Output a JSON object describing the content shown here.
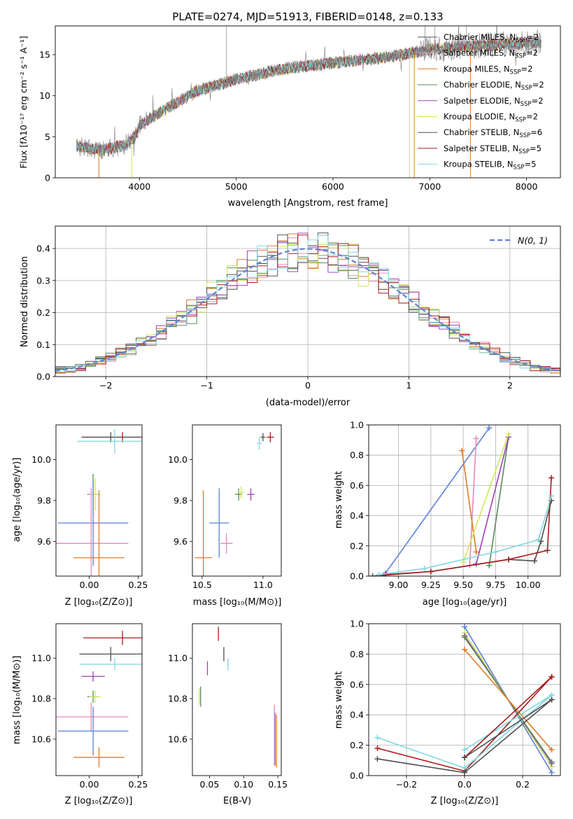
{
  "chart_data": [
    {
      "type": "line",
      "title": "PLATE=0274, MJD=51913, FIBERID=0148, z=0.133",
      "xlabel": "wavelength [Angstrom, rest frame]",
      "ylabel": "Flux [fλ10⁻¹⁷ erg cm⁻² s⁻¹ A⁻¹]",
      "xlim": [
        3130,
        8350
      ],
      "ylim": [
        0,
        18.5
      ],
      "xticks": [
        4000,
        5000,
        6000,
        7000,
        8000
      ],
      "yticks": [
        0,
        5,
        10,
        15
      ],
      "legend_position": "right",
      "series": [
        {
          "name": "Chabrier MILES, N",
          "sub": "SSP",
          "suffix": "=2",
          "color": "#4f4f4f"
        },
        {
          "name": "Salpeter MILES, N",
          "sub": "SSP",
          "suffix": "=2",
          "color": "#e889b8"
        },
        {
          "name": "Kroupa MILES, N",
          "sub": "SSP",
          "suffix": "=2",
          "color": "#e07b27"
        },
        {
          "name": "Chabrier ELODIE, N",
          "sub": "SSP",
          "suffix": "=2",
          "color": "#5b8a5b"
        },
        {
          "name": "Salpeter ELODIE, N",
          "sub": "SSP",
          "suffix": "=2",
          "color": "#a040b8"
        },
        {
          "name": "Kroupa ELODIE, N",
          "sub": "SSP",
          "suffix": "=2",
          "color": "#cfe85a"
        },
        {
          "name": "Chabrier STELIB, N",
          "sub": "SSP",
          "suffix": "=6",
          "color": "#555555"
        },
        {
          "name": "Salpeter STELIB, N",
          "sub": "SSP",
          "suffix": "=5",
          "color": "#a81c1c"
        },
        {
          "name": "Kroupa STELIB, N",
          "sub": "SSP",
          "suffix": "=5",
          "color": "#7fd8e0"
        }
      ],
      "continuum": [
        [
          3350,
          3.8
        ],
        [
          3600,
          3.4
        ],
        [
          3700,
          3.6
        ],
        [
          3850,
          4.0
        ],
        [
          3950,
          5.0
        ],
        [
          4000,
          6.4
        ],
        [
          4300,
          8.6
        ],
        [
          4600,
          10.6
        ],
        [
          5000,
          12.0
        ],
        [
          5500,
          13.3
        ],
        [
          6000,
          14.0
        ],
        [
          6500,
          14.6
        ],
        [
          7000,
          15.6
        ],
        [
          7500,
          16.1
        ],
        [
          8000,
          16.4
        ],
        [
          8150,
          16.5
        ]
      ]
    },
    {
      "type": "line",
      "xlabel": "(data-model)/error",
      "ylabel": "Normed distribution",
      "xlim": [
        -2.5,
        2.5
      ],
      "ylim": [
        0,
        0.47
      ],
      "xticks": [
        -2,
        -1,
        0,
        1,
        2
      ],
      "yticks": [
        0.0,
        0.1,
        0.2,
        0.3,
        0.4
      ],
      "legend": "N(0, 1)",
      "legend_color": "#5b82d6",
      "grid": true
    },
    {
      "type": "scatter",
      "xlabel": "Z [log₁₀(Z/Z⊙)]",
      "ylabel": "age  [log₁₀(age/yr)]",
      "xlim": [
        -0.17,
        0.27
      ],
      "ylim": [
        9.43,
        10.17
      ],
      "xticks": [
        0.0,
        0.25
      ],
      "yticks": [
        9.6,
        9.8,
        10.0
      ],
      "points": [
        {
          "x": 0.17,
          "y": 10.11,
          "xerr": 0.2,
          "yerr": 0.025,
          "color": "#a81c1c"
        },
        {
          "x": 0.11,
          "y": 10.11,
          "xerr": 0.15,
          "yerr": 0.025,
          "color": "#4f4f4f"
        },
        {
          "x": 0.13,
          "y": 10.09,
          "xerr": 0.19,
          "yerr": 0.06,
          "color": "#7fd8e0"
        },
        {
          "x": 0.02,
          "y": 9.83,
          "xerr": 0.03,
          "yerr": 0.1,
          "color": "#5b8a5b"
        },
        {
          "x": 0.03,
          "y": 9.83,
          "xerr": 0.03,
          "yerr": 0.08,
          "color": "#cfe85a"
        },
        {
          "x": 0.02,
          "y": 9.69,
          "xerr": 0.18,
          "yerr": 0.21,
          "color": "#5b82d6"
        },
        {
          "x": 0.01,
          "y": 9.59,
          "xerr": 0.19,
          "yerr": 0.27,
          "color": "#e889b8"
        },
        {
          "x": 0.05,
          "y": 9.52,
          "xerr": 0.13,
          "yerr": 0.33,
          "color": "#e07b27"
        }
      ]
    },
    {
      "type": "scatter",
      "xlabel": "mass [log₁₀(M/M⊙)]",
      "xlim": [
        10.42,
        11.15
      ],
      "ylim": [
        9.43,
        10.17
      ],
      "xticks": [
        10.5,
        11.0
      ],
      "yticks": [
        9.6,
        9.8,
        10.0
      ],
      "points": [
        {
          "x": 11.06,
          "y": 10.11,
          "xerr": 0.03,
          "yerr": 0.025,
          "color": "#a81c1c"
        },
        {
          "x": 11.0,
          "y": 10.11,
          "xerr": 0.02,
          "yerr": 0.02,
          "color": "#4f4f4f"
        },
        {
          "x": 10.97,
          "y": 10.08,
          "xerr": 0.02,
          "yerr": 0.03,
          "color": "#7fd8e0"
        },
        {
          "x": 10.8,
          "y": 9.83,
          "xerr": 0.03,
          "yerr": 0.03,
          "color": "#5b8a5b"
        },
        {
          "x": 10.82,
          "y": 9.84,
          "xerr": 0.03,
          "yerr": 0.03,
          "color": "#cfe85a"
        },
        {
          "x": 10.9,
          "y": 9.83,
          "xerr": 0.03,
          "yerr": 0.03,
          "color": "#a040b8"
        },
        {
          "x": 10.64,
          "y": 9.69,
          "xerr": 0.08,
          "yerr": 0.17,
          "color": "#5b82d6"
        },
        {
          "x": 10.7,
          "y": 9.59,
          "xerr": 0.05,
          "yerr": 0.05,
          "color": "#e889b8"
        },
        {
          "x": 10.51,
          "y": 9.52,
          "xerr": 0.07,
          "yerr": 0.33,
          "color": "#e07b27"
        }
      ]
    },
    {
      "type": "line",
      "xlabel": "age  [log₁₀(age/yr)]",
      "ylabel": "mass weight",
      "xlim": [
        8.77,
        10.25
      ],
      "ylim": [
        0,
        1.0
      ],
      "xticks": [
        9.0,
        9.25,
        9.5,
        9.75,
        10.0
      ],
      "yticks": [
        0.0,
        0.2,
        0.4,
        0.6,
        0.8,
        1.0
      ],
      "grid": true,
      "series": [
        {
          "color": "#5b82d6",
          "x": [
            8.9,
            9.7
          ],
          "y": [
            0.02,
            0.98
          ]
        },
        {
          "color": "#e889b8",
          "x": [
            9.55,
            9.6
          ],
          "y": [
            0.07,
            0.91
          ]
        },
        {
          "color": "#e07b27",
          "x": [
            9.49,
            9.6
          ],
          "y": [
            0.83,
            0.16
          ]
        },
        {
          "color": "#5b8a5b",
          "x": [
            9.7,
            9.85
          ],
          "y": [
            0.07,
            0.92
          ]
        },
        {
          "color": "#a040b8",
          "x": [
            9.6,
            9.85
          ],
          "y": [
            0.08,
            0.92
          ]
        },
        {
          "color": "#cfe85a",
          "x": [
            9.5,
            9.85
          ],
          "y": [
            0.09,
            0.94
          ]
        },
        {
          "color": "#4f4f4f",
          "x": [
            8.8,
            9.25,
            9.85,
            10.05,
            10.1,
            10.18
          ],
          "y": [
            0.0,
            0.03,
            0.11,
            0.1,
            0.23,
            0.5
          ]
        },
        {
          "color": "#a81c1c",
          "x": [
            8.9,
            9.25,
            9.85,
            10.15,
            10.18
          ],
          "y": [
            0.01,
            0.03,
            0.11,
            0.17,
            0.65
          ]
        },
        {
          "color": "#7fd8e0",
          "x": [
            8.85,
            9.2,
            9.75,
            10.08,
            10.18
          ],
          "y": [
            0.01,
            0.05,
            0.16,
            0.24,
            0.53
          ]
        }
      ]
    },
    {
      "type": "scatter",
      "xlabel": "Z [log₁₀(Z/Z⊙)]",
      "ylabel": "mass [log₁₀(M/M⊙)]",
      "xlim": [
        -0.17,
        0.27
      ],
      "ylim": [
        10.42,
        11.17
      ],
      "xticks": [
        0.0,
        0.25
      ],
      "yticks": [
        10.6,
        10.8,
        11.0
      ],
      "points": [
        {
          "x": 0.17,
          "y": 11.1,
          "xerr": 0.2,
          "yerr": 0.035,
          "color": "#a81c1c"
        },
        {
          "x": 0.11,
          "y": 11.02,
          "xerr": 0.16,
          "yerr": 0.035,
          "color": "#4f4f4f"
        },
        {
          "x": 0.13,
          "y": 10.97,
          "xerr": 0.18,
          "yerr": 0.03,
          "color": "#7fd8e0"
        },
        {
          "x": 0.02,
          "y": 10.91,
          "xerr": 0.06,
          "yerr": 0.025,
          "color": "#a040b8"
        },
        {
          "x": 0.02,
          "y": 10.81,
          "xerr": 0.03,
          "yerr": 0.03,
          "color": "#5b8a5b"
        },
        {
          "x": 0.03,
          "y": 10.81,
          "xerr": 0.03,
          "yerr": 0.03,
          "color": "#cfe85a"
        },
        {
          "x": 0.01,
          "y": 10.71,
          "xerr": 0.19,
          "yerr": 0.07,
          "color": "#e889b8"
        },
        {
          "x": 0.02,
          "y": 10.64,
          "xerr": 0.18,
          "yerr": 0.12,
          "color": "#5b82d6"
        },
        {
          "x": 0.05,
          "y": 10.51,
          "xerr": 0.13,
          "yerr": 0.05,
          "color": "#e07b27"
        }
      ]
    },
    {
      "type": "scatter",
      "xlabel": "E(B-V)",
      "xlim": [
        0.025,
        0.155
      ],
      "ylim": [
        10.42,
        11.17
      ],
      "xticks": [
        0.05,
        0.1,
        0.15
      ],
      "yticks": [
        10.6,
        10.8,
        11.0
      ],
      "points": [
        {
          "x": 0.063,
          "y": 11.12,
          "xerr": 0.0,
          "yerr": 0.035,
          "color": "#a81c1c"
        },
        {
          "x": 0.071,
          "y": 11.02,
          "xerr": 0.0,
          "yerr": 0.035,
          "color": "#4f4f4f"
        },
        {
          "x": 0.077,
          "y": 10.97,
          "xerr": 0.0,
          "yerr": 0.03,
          "color": "#7fd8e0"
        },
        {
          "x": 0.047,
          "y": 10.95,
          "xerr": 0.0,
          "yerr": 0.035,
          "color": "#a040b8"
        },
        {
          "x": 0.037,
          "y": 10.81,
          "xerr": 0.0,
          "yerr": 0.05,
          "color": "#5b8a5b"
        },
        {
          "x": 0.035,
          "y": 10.81,
          "xerr": 0.0,
          "yerr": 0.04,
          "color": "#cfe85a"
        },
        {
          "x": 0.145,
          "y": 10.62,
          "xerr": 0.0,
          "yerr": 0.15,
          "color": "#e889b8"
        },
        {
          "x": 0.146,
          "y": 10.6,
          "xerr": 0.0,
          "yerr": 0.13,
          "color": "#5b82d6"
        },
        {
          "x": 0.148,
          "y": 10.59,
          "xerr": 0.0,
          "yerr": 0.13,
          "color": "#e07b27"
        }
      ]
    },
    {
      "type": "line",
      "xlabel": "Z [log₁₀(Z/Z⊙)]",
      "ylabel": "mass weight",
      "xlim": [
        -0.33,
        0.33
      ],
      "ylim": [
        0,
        1.0
      ],
      "xticks": [
        -0.2,
        0.0,
        0.2
      ],
      "yticks": [
        0.0,
        0.2,
        0.4,
        0.6,
        0.8,
        1.0
      ],
      "grid": true,
      "series": [
        {
          "color": "#5b82d6",
          "x": [
            0.0,
            0.3
          ],
          "y": [
            0.98,
            0.02
          ]
        },
        {
          "color": "#cfe85a",
          "x": [
            0.0,
            0.3
          ],
          "y": [
            0.94,
            0.06
          ]
        },
        {
          "color": "#a040b8",
          "x": [
            0.0,
            0.3
          ],
          "y": [
            0.92,
            0.08
          ]
        },
        {
          "color": "#5b8a5b",
          "x": [
            0.0,
            0.3
          ],
          "y": [
            0.91,
            0.09
          ]
        },
        {
          "color": "#e07b27",
          "x": [
            0.0,
            0.3
          ],
          "y": [
            0.83,
            0.17
          ]
        },
        {
          "color": "#a81c1c",
          "x": [
            -0.3,
            0.0,
            0.3
          ],
          "y": [
            0.18,
            0.03,
            0.65
          ]
        },
        {
          "color": "#7fd8e0",
          "x": [
            -0.3,
            0.0,
            0.3
          ],
          "y": [
            0.25,
            0.05,
            0.53
          ]
        },
        {
          "color": "#4f4f4f",
          "x": [
            -0.3,
            0.0,
            0.3
          ],
          "y": [
            0.11,
            0.02,
            0.5
          ]
        },
        {
          "color": "#7fd8e0",
          "x": [
            0.0,
            0.3
          ],
          "y": [
            0.17,
            0.53
          ]
        },
        {
          "color": "#a81c1c",
          "x": [
            0.0,
            0.3
          ],
          "y": [
            0.12,
            0.65
          ]
        },
        {
          "color": "#4f4f4f",
          "x": [
            0.0,
            0.3
          ],
          "y": [
            0.12,
            0.5
          ]
        }
      ]
    }
  ]
}
